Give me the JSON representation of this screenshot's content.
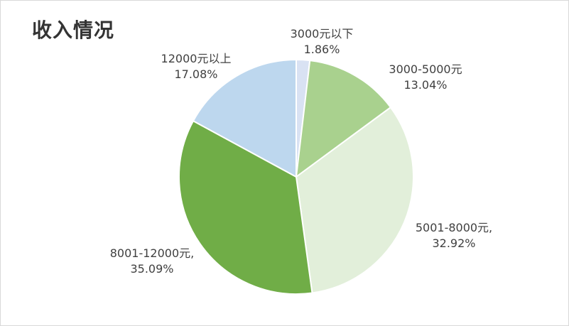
{
  "chart_data": {
    "type": "pie",
    "title": "收入情况",
    "slices": [
      {
        "label": "3000元以下",
        "value": 1.86,
        "value_label": "1.86%",
        "color": "#d9e2f3"
      },
      {
        "label": "3000-5000元",
        "value": 13.04,
        "value_label": "13.04%",
        "color": "#a9d18e"
      },
      {
        "label": "5001-8000元,",
        "value": 32.92,
        "value_label": "32.92%",
        "color": "#e2efda"
      },
      {
        "label": "8001-12000元,",
        "value": 35.09,
        "value_label": "35.09%",
        "color": "#70ad47"
      },
      {
        "label": "12000元以上",
        "value": 17.08,
        "value_label": "17.08%",
        "color": "#bdd7ee"
      }
    ],
    "start_angle": "12 o'clock",
    "direction": "clockwise",
    "legend": "none",
    "data_labels": "outside"
  }
}
